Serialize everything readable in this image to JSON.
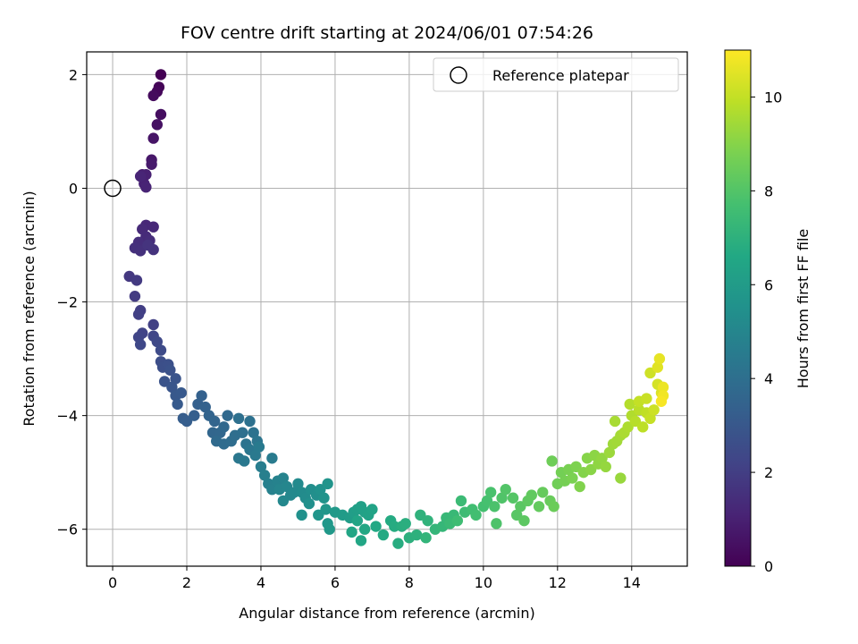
{
  "chart_data": {
    "type": "scatter",
    "title": "FOV centre drift starting at 2024/06/01 07:54:26",
    "xlabel": "Angular distance from reference (arcmin)",
    "ylabel": "Rotation from reference (arcmin)",
    "xlim": [
      -0.7,
      15.5
    ],
    "ylim": [
      -6.65,
      2.4
    ],
    "xticks": [
      0,
      2,
      4,
      6,
      8,
      10,
      12,
      14
    ],
    "yticks": [
      -6,
      -4,
      -2,
      0,
      2
    ],
    "xtick_labels": [
      "0",
      "2",
      "4",
      "6",
      "8",
      "10",
      "12",
      "14"
    ],
    "ytick_labels": [
      "−6",
      "−4",
      "−2",
      "0",
      "2"
    ],
    "grid": true,
    "colorbar": {
      "label": "Hours from first FF file",
      "range": [
        0,
        11
      ],
      "ticks": [
        0,
        2,
        4,
        6,
        8,
        10
      ],
      "tick_labels": [
        "0",
        "2",
        "4",
        "6",
        "8",
        "10"
      ],
      "colormap": "viridis"
    },
    "reference_point": {
      "x": 0,
      "y": 0
    },
    "legend": {
      "label": "Reference platepar",
      "position": "top-right"
    },
    "points": [
      [
        1.3,
        2.0,
        0.0
      ],
      [
        1.25,
        1.78,
        0.1
      ],
      [
        1.2,
        1.7,
        0.2
      ],
      [
        1.1,
        1.63,
        0.3
      ],
      [
        1.3,
        1.3,
        0.4
      ],
      [
        1.2,
        1.12,
        0.5
      ],
      [
        1.1,
        0.88,
        0.6
      ],
      [
        1.05,
        0.5,
        0.7
      ],
      [
        1.05,
        0.42,
        0.8
      ],
      [
        0.8,
        0.24,
        0.9
      ],
      [
        0.9,
        0.24,
        1.0
      ],
      [
        0.85,
        0.08,
        1.05
      ],
      [
        0.9,
        0.02,
        1.1
      ],
      [
        0.75,
        0.21,
        1.15
      ],
      [
        0.9,
        -0.65,
        1.2
      ],
      [
        1.1,
        -0.68,
        1.25
      ],
      [
        0.8,
        -0.72,
        1.3
      ],
      [
        0.9,
        -0.85,
        1.35
      ],
      [
        1.0,
        -0.92,
        1.4
      ],
      [
        0.7,
        -0.95,
        1.45
      ],
      [
        0.6,
        -1.05,
        1.5
      ],
      [
        0.75,
        -1.1,
        1.55
      ],
      [
        1.1,
        -1.08,
        1.6
      ],
      [
        0.95,
        -1.0,
        1.65
      ],
      [
        0.45,
        -1.55,
        1.8
      ],
      [
        0.65,
        -1.62,
        1.85
      ],
      [
        0.6,
        -1.9,
        1.9
      ],
      [
        0.75,
        -2.15,
        2.0
      ],
      [
        0.7,
        -2.22,
        2.05
      ],
      [
        1.1,
        -2.4,
        2.1
      ],
      [
        0.8,
        -2.55,
        2.2
      ],
      [
        0.7,
        -2.62,
        2.25
      ],
      [
        1.1,
        -2.6,
        2.3
      ],
      [
        0.75,
        -2.75,
        2.35
      ],
      [
        1.2,
        -2.7,
        2.4
      ],
      [
        1.3,
        -2.85,
        2.5
      ],
      [
        1.3,
        -3.05,
        2.6
      ],
      [
        1.35,
        -3.15,
        2.65
      ],
      [
        1.5,
        -3.1,
        2.7
      ],
      [
        1.55,
        -3.2,
        2.75
      ],
      [
        1.4,
        -3.4,
        2.8
      ],
      [
        1.7,
        -3.35,
        2.85
      ],
      [
        1.6,
        -3.5,
        2.9
      ],
      [
        1.7,
        -3.65,
        3.0
      ],
      [
        1.85,
        -3.6,
        3.05
      ],
      [
        1.75,
        -3.8,
        3.1
      ],
      [
        1.9,
        -4.05,
        3.2
      ],
      [
        2.0,
        -4.1,
        3.25
      ],
      [
        2.2,
        -4.0,
        3.3
      ],
      [
        2.3,
        -3.8,
        3.35
      ],
      [
        2.4,
        -3.65,
        3.4
      ],
      [
        2.5,
        -3.85,
        3.45
      ],
      [
        2.6,
        -4.0,
        3.5
      ],
      [
        2.75,
        -4.1,
        3.55
      ],
      [
        2.7,
        -4.3,
        3.6
      ],
      [
        2.9,
        -4.3,
        3.65
      ],
      [
        3.0,
        -4.2,
        3.7
      ],
      [
        3.1,
        -4.0,
        3.75
      ],
      [
        2.8,
        -4.45,
        3.8
      ],
      [
        3.0,
        -4.5,
        3.85
      ],
      [
        3.2,
        -4.45,
        3.9
      ],
      [
        3.3,
        -4.35,
        3.95
      ],
      [
        3.5,
        -4.3,
        4.0
      ],
      [
        3.4,
        -4.05,
        4.05
      ],
      [
        3.7,
        -4.1,
        4.1
      ],
      [
        3.8,
        -4.3,
        4.15
      ],
      [
        3.6,
        -4.5,
        4.2
      ],
      [
        3.9,
        -4.45,
        4.25
      ],
      [
        3.7,
        -4.6,
        4.3
      ],
      [
        3.4,
        -4.75,
        4.35
      ],
      [
        3.55,
        -4.8,
        4.4
      ],
      [
        3.85,
        -4.7,
        4.45
      ],
      [
        3.95,
        -4.55,
        4.5
      ],
      [
        4.3,
        -4.75,
        4.55
      ],
      [
        4.0,
        -4.9,
        4.6
      ],
      [
        4.1,
        -5.05,
        4.7
      ],
      [
        4.2,
        -5.2,
        4.75
      ],
      [
        4.3,
        -5.3,
        4.8
      ],
      [
        4.45,
        -5.15,
        4.85
      ],
      [
        4.6,
        -5.1,
        4.9
      ],
      [
        4.5,
        -5.3,
        4.95
      ],
      [
        4.7,
        -5.25,
        5.0
      ],
      [
        4.8,
        -5.4,
        5.05
      ],
      [
        4.6,
        -5.5,
        5.1
      ],
      [
        4.9,
        -5.35,
        5.15
      ],
      [
        5.0,
        -5.2,
        5.2
      ],
      [
        5.1,
        -5.35,
        5.25
      ],
      [
        5.2,
        -5.45,
        5.3
      ],
      [
        5.35,
        -5.3,
        5.35
      ],
      [
        5.5,
        -5.4,
        5.4
      ],
      [
        5.3,
        -5.55,
        5.45
      ],
      [
        5.1,
        -5.75,
        5.5
      ],
      [
        5.6,
        -5.3,
        5.55
      ],
      [
        5.7,
        -5.45,
        5.6
      ],
      [
        5.8,
        -5.2,
        5.65
      ],
      [
        5.55,
        -5.75,
        5.7
      ],
      [
        5.75,
        -5.65,
        5.75
      ],
      [
        5.8,
        -5.9,
        5.8
      ],
      [
        5.85,
        -6.0,
        5.85
      ],
      [
        6.0,
        -5.7,
        5.9
      ],
      [
        6.2,
        -5.75,
        6.0
      ],
      [
        6.4,
        -5.8,
        6.05
      ],
      [
        6.5,
        -5.7,
        6.1
      ],
      [
        6.6,
        -5.65,
        6.15
      ],
      [
        6.7,
        -5.6,
        6.2
      ],
      [
        6.8,
        -5.7,
        6.25
      ],
      [
        6.9,
        -5.75,
        6.3
      ],
      [
        7.0,
        -5.65,
        6.35
      ],
      [
        6.6,
        -5.85,
        6.4
      ],
      [
        6.45,
        -6.05,
        6.45
      ],
      [
        6.7,
        -6.2,
        6.5
      ],
      [
        6.8,
        -6.0,
        6.55
      ],
      [
        7.1,
        -5.95,
        6.6
      ],
      [
        7.3,
        -6.1,
        6.65
      ],
      [
        7.5,
        -5.85,
        6.7
      ],
      [
        7.6,
        -5.95,
        6.75
      ],
      [
        7.7,
        -6.25,
        6.8
      ],
      [
        7.8,
        -5.95,
        6.85
      ],
      [
        7.9,
        -5.9,
        6.9
      ],
      [
        8.0,
        -6.15,
        6.95
      ],
      [
        8.2,
        -6.1,
        7.0
      ],
      [
        8.3,
        -5.75,
        7.05
      ],
      [
        8.5,
        -5.85,
        7.1
      ],
      [
        8.45,
        -6.15,
        7.15
      ],
      [
        8.7,
        -6.0,
        7.2
      ],
      [
        8.9,
        -5.95,
        7.25
      ],
      [
        9.0,
        -5.8,
        7.3
      ],
      [
        9.2,
        -5.75,
        7.35
      ],
      [
        9.1,
        -5.9,
        7.4
      ],
      [
        9.4,
        -5.5,
        7.45
      ],
      [
        9.5,
        -5.7,
        7.5
      ],
      [
        9.3,
        -5.85,
        7.55
      ],
      [
        9.7,
        -5.65,
        7.6
      ],
      [
        9.8,
        -5.75,
        7.65
      ],
      [
        10.0,
        -5.6,
        7.7
      ],
      [
        10.1,
        -5.5,
        7.75
      ],
      [
        10.2,
        -5.35,
        7.8
      ],
      [
        10.3,
        -5.6,
        7.85
      ],
      [
        10.35,
        -5.9,
        7.9
      ],
      [
        10.5,
        -5.45,
        7.95
      ],
      [
        10.6,
        -5.3,
        8.0
      ],
      [
        10.8,
        -5.45,
        8.05
      ],
      [
        10.9,
        -5.75,
        8.1
      ],
      [
        11.0,
        -5.6,
        8.15
      ],
      [
        11.1,
        -5.85,
        8.2
      ],
      [
        11.2,
        -5.5,
        8.25
      ],
      [
        11.3,
        -5.4,
        8.3
      ],
      [
        11.5,
        -5.6,
        8.35
      ],
      [
        11.6,
        -5.35,
        8.4
      ],
      [
        11.8,
        -5.5,
        8.45
      ],
      [
        11.9,
        -5.6,
        8.5
      ],
      [
        11.85,
        -4.8,
        8.55
      ],
      [
        12.0,
        -5.2,
        8.6
      ],
      [
        12.1,
        -5.0,
        8.65
      ],
      [
        12.2,
        -5.15,
        8.7
      ],
      [
        12.3,
        -4.95,
        8.75
      ],
      [
        12.4,
        -5.1,
        8.8
      ],
      [
        12.5,
        -4.9,
        8.85
      ],
      [
        12.6,
        -5.25,
        8.9
      ],
      [
        12.7,
        -5.0,
        8.95
      ],
      [
        12.8,
        -4.75,
        9.0
      ],
      [
        12.9,
        -4.95,
        9.05
      ],
      [
        13.0,
        -4.7,
        9.1
      ],
      [
        13.1,
        -4.85,
        9.15
      ],
      [
        13.2,
        -4.75,
        9.2
      ],
      [
        13.3,
        -4.9,
        9.25
      ],
      [
        13.7,
        -5.1,
        9.3
      ],
      [
        13.4,
        -4.65,
        9.35
      ],
      [
        13.5,
        -4.5,
        9.4
      ],
      [
        13.6,
        -4.45,
        9.45
      ],
      [
        13.7,
        -4.35,
        9.5
      ],
      [
        13.55,
        -4.1,
        9.55
      ],
      [
        13.8,
        -4.3,
        9.6
      ],
      [
        13.9,
        -4.2,
        9.65
      ],
      [
        14.0,
        -4.0,
        9.7
      ],
      [
        13.95,
        -3.8,
        9.75
      ],
      [
        14.1,
        -4.1,
        9.8
      ],
      [
        14.2,
        -3.9,
        9.85
      ],
      [
        14.3,
        -4.2,
        9.9
      ],
      [
        14.4,
        -3.95,
        9.95
      ],
      [
        14.2,
        -3.75,
        10.0
      ],
      [
        14.5,
        -4.05,
        10.05
      ],
      [
        14.4,
        -3.7,
        10.1
      ],
      [
        14.6,
        -3.9,
        10.15
      ],
      [
        14.5,
        -3.25,
        10.2
      ],
      [
        14.7,
        -3.45,
        10.3
      ],
      [
        14.8,
        -3.6,
        10.4
      ],
      [
        14.7,
        -3.15,
        10.5
      ],
      [
        14.75,
        -3.0,
        10.6
      ],
      [
        14.85,
        -3.5,
        10.7
      ],
      [
        14.85,
        -3.65,
        10.8
      ],
      [
        14.8,
        -3.75,
        10.9
      ]
    ]
  }
}
